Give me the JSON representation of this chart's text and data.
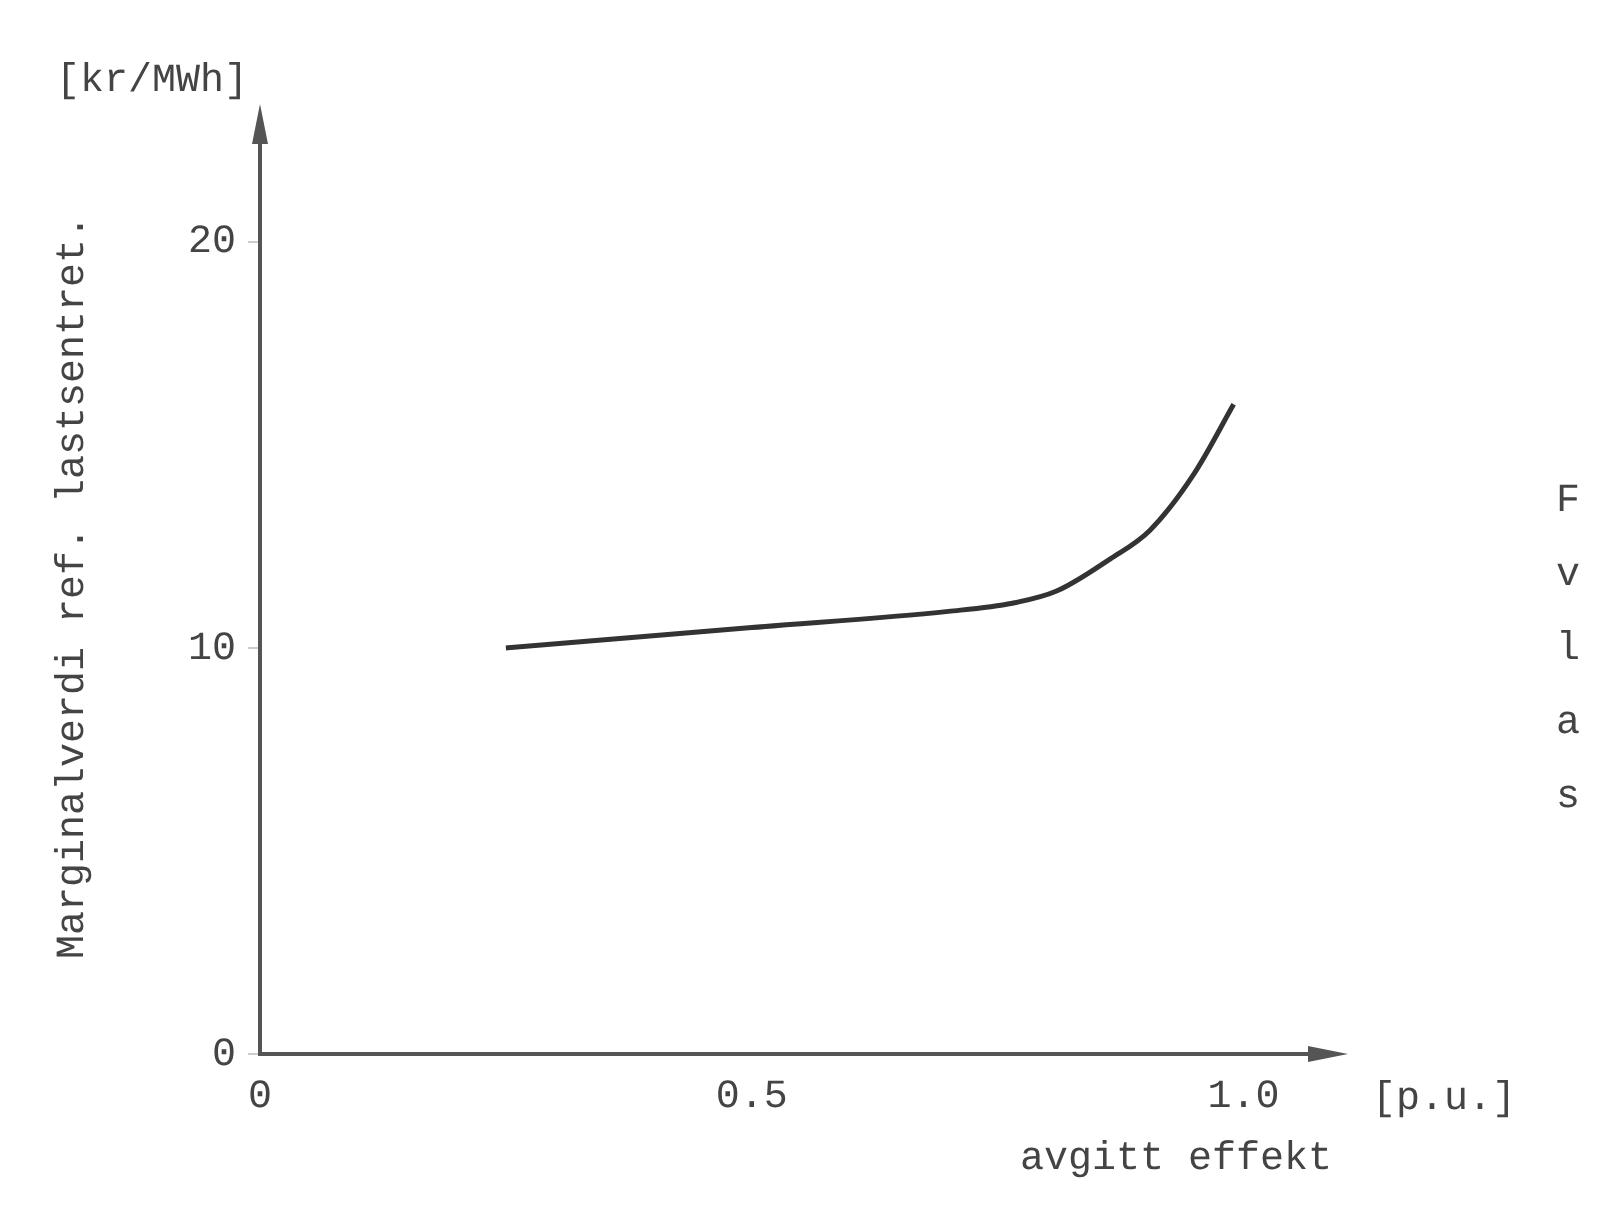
{
  "chart_data": {
    "type": "line",
    "xlabel": "avgitt effekt",
    "ylabel": "Marginalverdi ref. lastsentret.",
    "annotations": [
      "[kr/MWh]",
      "[p.u.]",
      "F",
      "v",
      "l",
      "a",
      "s"
    ],
    "x": [
      0.25,
      0.5,
      0.7,
      0.765,
      0.81,
      0.865,
      0.905,
      0.95,
      0.99
    ],
    "series": [
      {
        "color": "#333333",
        "values": [
          10.0,
          10.5,
          10.9,
          11.1,
          11.4,
          12.2,
          12.9,
          14.3,
          16.0
        ]
      }
    ],
    "xlim": [
      0,
      1.09
    ],
    "xticks": [
      0,
      0.5,
      {
        "value": 1,
        "label": "1.0"
      }
    ],
    "ylim": [
      0,
      23
    ],
    "yticks": [
      0,
      10,
      20
    ],
    "grid": false,
    "legend": false,
    "marker": "none",
    "line_style": "solid"
  }
}
